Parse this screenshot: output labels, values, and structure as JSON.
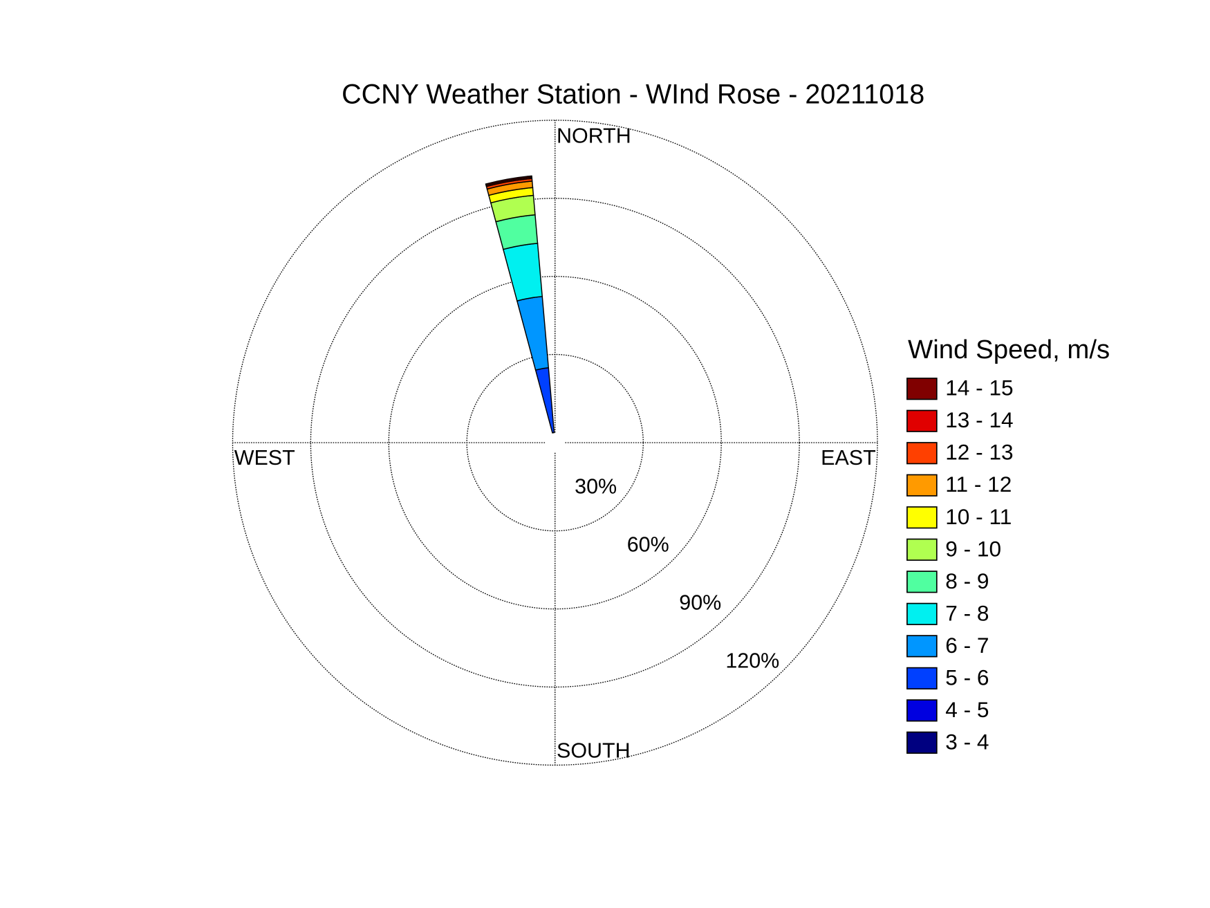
{
  "chart_data": {
    "type": "wind_rose",
    "title": "CCNY Weather Station - WInd Rose - 20211018",
    "direction_labels": [
      "NORTH",
      "EAST",
      "SOUTH",
      "WEST"
    ],
    "legend_title": "Wind Speed, m/s",
    "directions": [
      350
    ],
    "sector_width": 10,
    "rlim": [
      0,
      120
    ],
    "rticks": [
      {
        "value": 30,
        "label": "30%"
      },
      {
        "value": 60,
        "label": "60%"
      },
      {
        "value": 90,
        "label": "90%"
      },
      {
        "value": 120,
        "label": "120%"
      }
    ],
    "grid": true,
    "series": [
      {
        "name": "3 - 4",
        "color": "#000080",
        "values": [
          0
        ]
      },
      {
        "name": "4 - 5",
        "color": "#0000e0",
        "values": [
          0
        ]
      },
      {
        "name": "5 - 6",
        "color": "#0040ff",
        "values": [
          25
        ]
      },
      {
        "name": "6 - 7",
        "color": "#0096ff",
        "values": [
          27.5
        ]
      },
      {
        "name": "7 - 8",
        "color": "#00f0f0",
        "values": [
          20.5
        ]
      },
      {
        "name": "8 - 9",
        "color": "#50ffa0",
        "values": [
          11
        ]
      },
      {
        "name": "9 - 10",
        "color": "#b0ff50",
        "values": [
          7.5
        ]
      },
      {
        "name": "10 - 11",
        "color": "#ffff00",
        "values": [
          3
        ]
      },
      {
        "name": "11 - 12",
        "color": "#ff9a00",
        "values": [
          2.5
        ]
      },
      {
        "name": "12 - 13",
        "color": "#ff4000",
        "values": [
          1
        ]
      },
      {
        "name": "13 - 14",
        "color": "#e00000",
        "values": [
          0.5
        ]
      },
      {
        "name": "14 - 15",
        "color": "#800000",
        "values": [
          0.5
        ]
      }
    ]
  }
}
